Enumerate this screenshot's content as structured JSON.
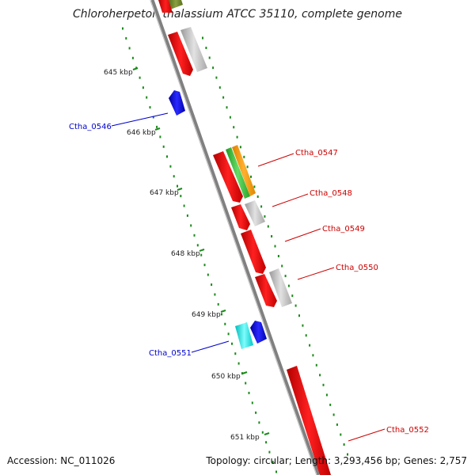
{
  "title": "Chloroherpeton thalassium ATCC 35110, complete genome",
  "footer": {
    "accession": "Accession: NC_011026",
    "stats": "Topology: circular; Length: 3,293,456 bp; Genes: 2,757"
  },
  "ticks": [
    {
      "label": "645 kbp"
    },
    {
      "label": "646 kbp"
    },
    {
      "label": "647 kbp"
    },
    {
      "label": "648 kbp"
    },
    {
      "label": "649 kbp"
    },
    {
      "label": "650 kbp"
    },
    {
      "label": "651 kbp"
    }
  ],
  "gene_labels": [
    {
      "label": "Ctha_0546",
      "color": "#0000cc"
    },
    {
      "label": "Ctha_0547",
      "color": "#cc0000"
    },
    {
      "label": "Ctha_0548",
      "color": "#cc0000"
    },
    {
      "label": "Ctha_0549",
      "color": "#cc0000"
    },
    {
      "label": "Ctha_0550",
      "color": "#cc0000"
    },
    {
      "label": "Ctha_0551",
      "color": "#0000cc"
    },
    {
      "label": "Ctha_0552",
      "color": "#cc0000"
    }
  ],
  "colors": {
    "backbone": "#888888",
    "forward_cds": "#ff0000",
    "reverse_cds": "#0000ff",
    "gc_ticks": "#1a8a1a",
    "gray_feature": "#bbbbbb",
    "orange_feature": "#ff9900",
    "green_feature": "#44bb44",
    "cyan_feature": "#00e5e5"
  }
}
